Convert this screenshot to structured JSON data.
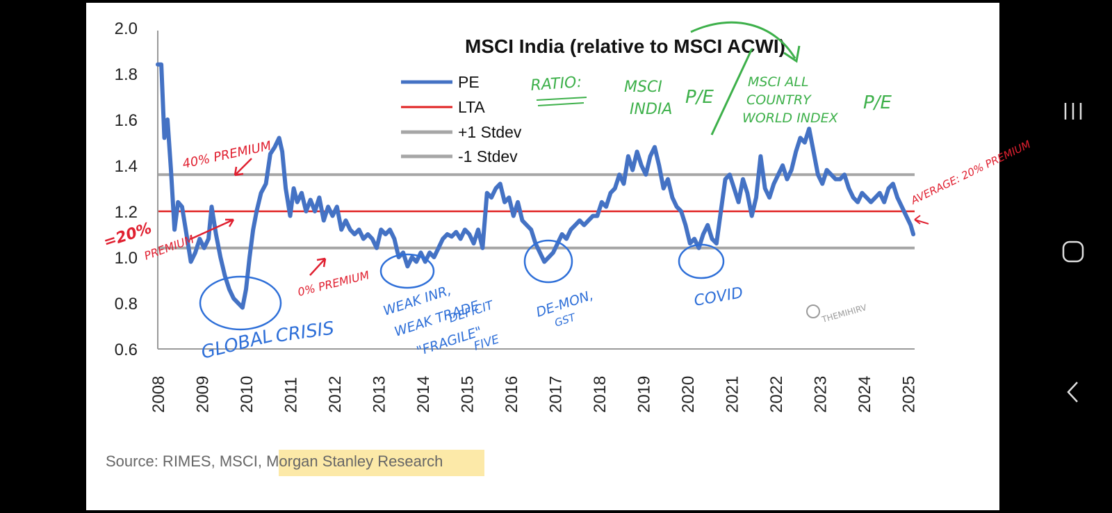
{
  "chart_data": {
    "type": "line",
    "title": "MSCI India (relative to MSCI ACWI)",
    "xlabel": "",
    "ylabel": "",
    "x_ticks": [
      "2008",
      "2009",
      "2010",
      "2011",
      "2012",
      "2013",
      "2014",
      "2015",
      "2016",
      "2017",
      "2018",
      "2019",
      "2020",
      "2021",
      "2022",
      "2023",
      "2024",
      "2025"
    ],
    "y_ticks": [
      "2.0",
      "1.8",
      "1.6",
      "1.4",
      "1.2",
      "1.0",
      "0.8",
      "0.6"
    ],
    "xlim": [
      2008,
      2025.15
    ],
    "ylim": [
      0.6,
      2.0
    ],
    "legend": [
      "PE",
      "LTA",
      "+1 Stdev",
      "-1 Stdev"
    ],
    "series": [
      {
        "name": "PE",
        "color": "#4472C4",
        "points": [
          [
            2008.0,
            1.84
          ],
          [
            2008.08,
            1.84
          ],
          [
            2008.15,
            1.52
          ],
          [
            2008.22,
            1.6
          ],
          [
            2008.3,
            1.38
          ],
          [
            2008.38,
            1.12
          ],
          [
            2008.46,
            1.24
          ],
          [
            2008.55,
            1.22
          ],
          [
            2008.65,
            1.1
          ],
          [
            2008.75,
            0.98
          ],
          [
            2008.85,
            1.02
          ],
          [
            2008.95,
            1.08
          ],
          [
            2009.05,
            1.04
          ],
          [
            2009.15,
            1.08
          ],
          [
            2009.22,
            1.22
          ],
          [
            2009.32,
            1.1
          ],
          [
            2009.42,
            1.0
          ],
          [
            2009.52,
            0.92
          ],
          [
            2009.62,
            0.86
          ],
          [
            2009.72,
            0.82
          ],
          [
            2009.82,
            0.8
          ],
          [
            2009.92,
            0.78
          ],
          [
            2010.0,
            0.86
          ],
          [
            2010.08,
            1.0
          ],
          [
            2010.16,
            1.12
          ],
          [
            2010.24,
            1.2
          ],
          [
            2010.34,
            1.28
          ],
          [
            2010.45,
            1.32
          ],
          [
            2010.55,
            1.45
          ],
          [
            2010.65,
            1.48
          ],
          [
            2010.75,
            1.52
          ],
          [
            2010.82,
            1.46
          ],
          [
            2010.9,
            1.3
          ],
          [
            2011.0,
            1.18
          ],
          [
            2011.08,
            1.3
          ],
          [
            2011.16,
            1.24
          ],
          [
            2011.26,
            1.28
          ],
          [
            2011.36,
            1.2
          ],
          [
            2011.46,
            1.25
          ],
          [
            2011.56,
            1.2
          ],
          [
            2011.66,
            1.26
          ],
          [
            2011.76,
            1.16
          ],
          [
            2011.86,
            1.22
          ],
          [
            2011.96,
            1.18
          ],
          [
            2012.06,
            1.22
          ],
          [
            2012.16,
            1.12
          ],
          [
            2012.26,
            1.16
          ],
          [
            2012.36,
            1.12
          ],
          [
            2012.46,
            1.1
          ],
          [
            2012.56,
            1.12
          ],
          [
            2012.66,
            1.08
          ],
          [
            2012.76,
            1.1
          ],
          [
            2012.86,
            1.08
          ],
          [
            2012.96,
            1.04
          ],
          [
            2013.06,
            1.12
          ],
          [
            2013.16,
            1.1
          ],
          [
            2013.26,
            1.12
          ],
          [
            2013.36,
            1.08
          ],
          [
            2013.46,
            1.0
          ],
          [
            2013.56,
            1.02
          ],
          [
            2013.66,
            0.96
          ],
          [
            2013.76,
            1.0
          ],
          [
            2013.86,
            0.98
          ],
          [
            2013.96,
            1.02
          ],
          [
            2014.06,
            0.98
          ],
          [
            2014.16,
            1.02
          ],
          [
            2014.26,
            1.0
          ],
          [
            2014.36,
            1.04
          ],
          [
            2014.46,
            1.08
          ],
          [
            2014.56,
            1.1
          ],
          [
            2014.66,
            1.09
          ],
          [
            2014.76,
            1.11
          ],
          [
            2014.86,
            1.08
          ],
          [
            2014.96,
            1.12
          ],
          [
            2015.06,
            1.1
          ],
          [
            2015.16,
            1.06
          ],
          [
            2015.26,
            1.12
          ],
          [
            2015.36,
            1.04
          ],
          [
            2015.46,
            1.28
          ],
          [
            2015.56,
            1.26
          ],
          [
            2015.66,
            1.3
          ],
          [
            2015.76,
            1.32
          ],
          [
            2015.86,
            1.24
          ],
          [
            2015.96,
            1.26
          ],
          [
            2016.06,
            1.18
          ],
          [
            2016.16,
            1.24
          ],
          [
            2016.26,
            1.16
          ],
          [
            2016.36,
            1.14
          ],
          [
            2016.46,
            1.12
          ],
          [
            2016.56,
            1.06
          ],
          [
            2016.66,
            1.02
          ],
          [
            2016.76,
            0.98
          ],
          [
            2016.86,
            1.0
          ],
          [
            2016.96,
            1.02
          ],
          [
            2017.06,
            1.06
          ],
          [
            2017.16,
            1.1
          ],
          [
            2017.26,
            1.08
          ],
          [
            2017.36,
            1.12
          ],
          [
            2017.46,
            1.14
          ],
          [
            2017.56,
            1.16
          ],
          [
            2017.66,
            1.14
          ],
          [
            2017.76,
            1.16
          ],
          [
            2017.86,
            1.18
          ],
          [
            2017.96,
            1.18
          ],
          [
            2018.06,
            1.24
          ],
          [
            2018.16,
            1.22
          ],
          [
            2018.26,
            1.28
          ],
          [
            2018.36,
            1.3
          ],
          [
            2018.46,
            1.36
          ],
          [
            2018.56,
            1.32
          ],
          [
            2018.66,
            1.44
          ],
          [
            2018.76,
            1.38
          ],
          [
            2018.86,
            1.46
          ],
          [
            2018.96,
            1.4
          ],
          [
            2019.06,
            1.36
          ],
          [
            2019.16,
            1.44
          ],
          [
            2019.26,
            1.48
          ],
          [
            2019.36,
            1.4
          ],
          [
            2019.46,
            1.3
          ],
          [
            2019.56,
            1.34
          ],
          [
            2019.66,
            1.26
          ],
          [
            2019.76,
            1.22
          ],
          [
            2019.86,
            1.2
          ],
          [
            2019.96,
            1.14
          ],
          [
            2020.06,
            1.06
          ],
          [
            2020.16,
            1.08
          ],
          [
            2020.26,
            1.04
          ],
          [
            2020.36,
            1.1
          ],
          [
            2020.46,
            1.14
          ],
          [
            2020.56,
            1.08
          ],
          [
            2020.66,
            1.06
          ],
          [
            2020.76,
            1.2
          ],
          [
            2020.86,
            1.34
          ],
          [
            2020.96,
            1.36
          ],
          [
            2021.06,
            1.3
          ],
          [
            2021.16,
            1.24
          ],
          [
            2021.26,
            1.34
          ],
          [
            2021.36,
            1.28
          ],
          [
            2021.46,
            1.18
          ],
          [
            2021.56,
            1.26
          ],
          [
            2021.66,
            1.44
          ],
          [
            2021.76,
            1.3
          ],
          [
            2021.86,
            1.26
          ],
          [
            2021.96,
            1.32
          ],
          [
            2022.06,
            1.36
          ],
          [
            2022.16,
            1.4
          ],
          [
            2022.26,
            1.34
          ],
          [
            2022.36,
            1.38
          ],
          [
            2022.46,
            1.46
          ],
          [
            2022.56,
            1.52
          ],
          [
            2022.66,
            1.5
          ],
          [
            2022.76,
            1.56
          ],
          [
            2022.86,
            1.46
          ],
          [
            2022.96,
            1.36
          ],
          [
            2023.06,
            1.32
          ],
          [
            2023.16,
            1.38
          ],
          [
            2023.26,
            1.36
          ],
          [
            2023.36,
            1.34
          ],
          [
            2023.46,
            1.34
          ],
          [
            2023.56,
            1.36
          ],
          [
            2023.66,
            1.3
          ],
          [
            2023.76,
            1.26
          ],
          [
            2023.86,
            1.24
          ],
          [
            2023.96,
            1.28
          ],
          [
            2024.06,
            1.26
          ],
          [
            2024.16,
            1.24
          ],
          [
            2024.26,
            1.26
          ],
          [
            2024.36,
            1.28
          ],
          [
            2024.46,
            1.24
          ],
          [
            2024.56,
            1.3
          ],
          [
            2024.66,
            1.32
          ],
          [
            2024.76,
            1.26
          ],
          [
            2024.86,
            1.22
          ],
          [
            2024.96,
            1.18
          ],
          [
            2025.06,
            1.14
          ],
          [
            2025.12,
            1.1
          ]
        ]
      },
      {
        "name": "LTA",
        "color": "#E02020",
        "value": 1.2
      },
      {
        "name": "+1 Stdev",
        "color": "#A6A6A6",
        "value": 1.36
      },
      {
        "name": "-1 Stdev",
        "color": "#A6A6A6",
        "value": 1.04
      }
    ],
    "annotations": {
      "red": [
        "40% PREMIUM",
        "=20%",
        "PREMIUM",
        "0% PREMIUM",
        "AVERAGE: 20% PREMIUM"
      ],
      "blue": [
        "GLOBAL",
        "CRISIS",
        "WEAK INR,",
        "WEAK TRADE",
        "DEFICIT",
        "\"FRAGILE\"",
        "FIVE",
        "DE-MON,",
        "GST",
        "COVID"
      ],
      "green": [
        "RATIO:",
        "MSCI",
        "INDIA",
        "P/E",
        "MSCI ALL",
        "COUNTRY",
        "WORLD INDEX",
        "P/E"
      ],
      "watermark": "THEMIHIRV"
    }
  },
  "source": {
    "prefix": "Source: RIMES, MSCI, ",
    "highlight": "Morgan Stanley Research",
    "highlight_color": "#FCE9A8"
  },
  "nav": {
    "recents_icon": "recents-icon",
    "home_icon": "home-icon",
    "back_icon": "back-icon"
  }
}
